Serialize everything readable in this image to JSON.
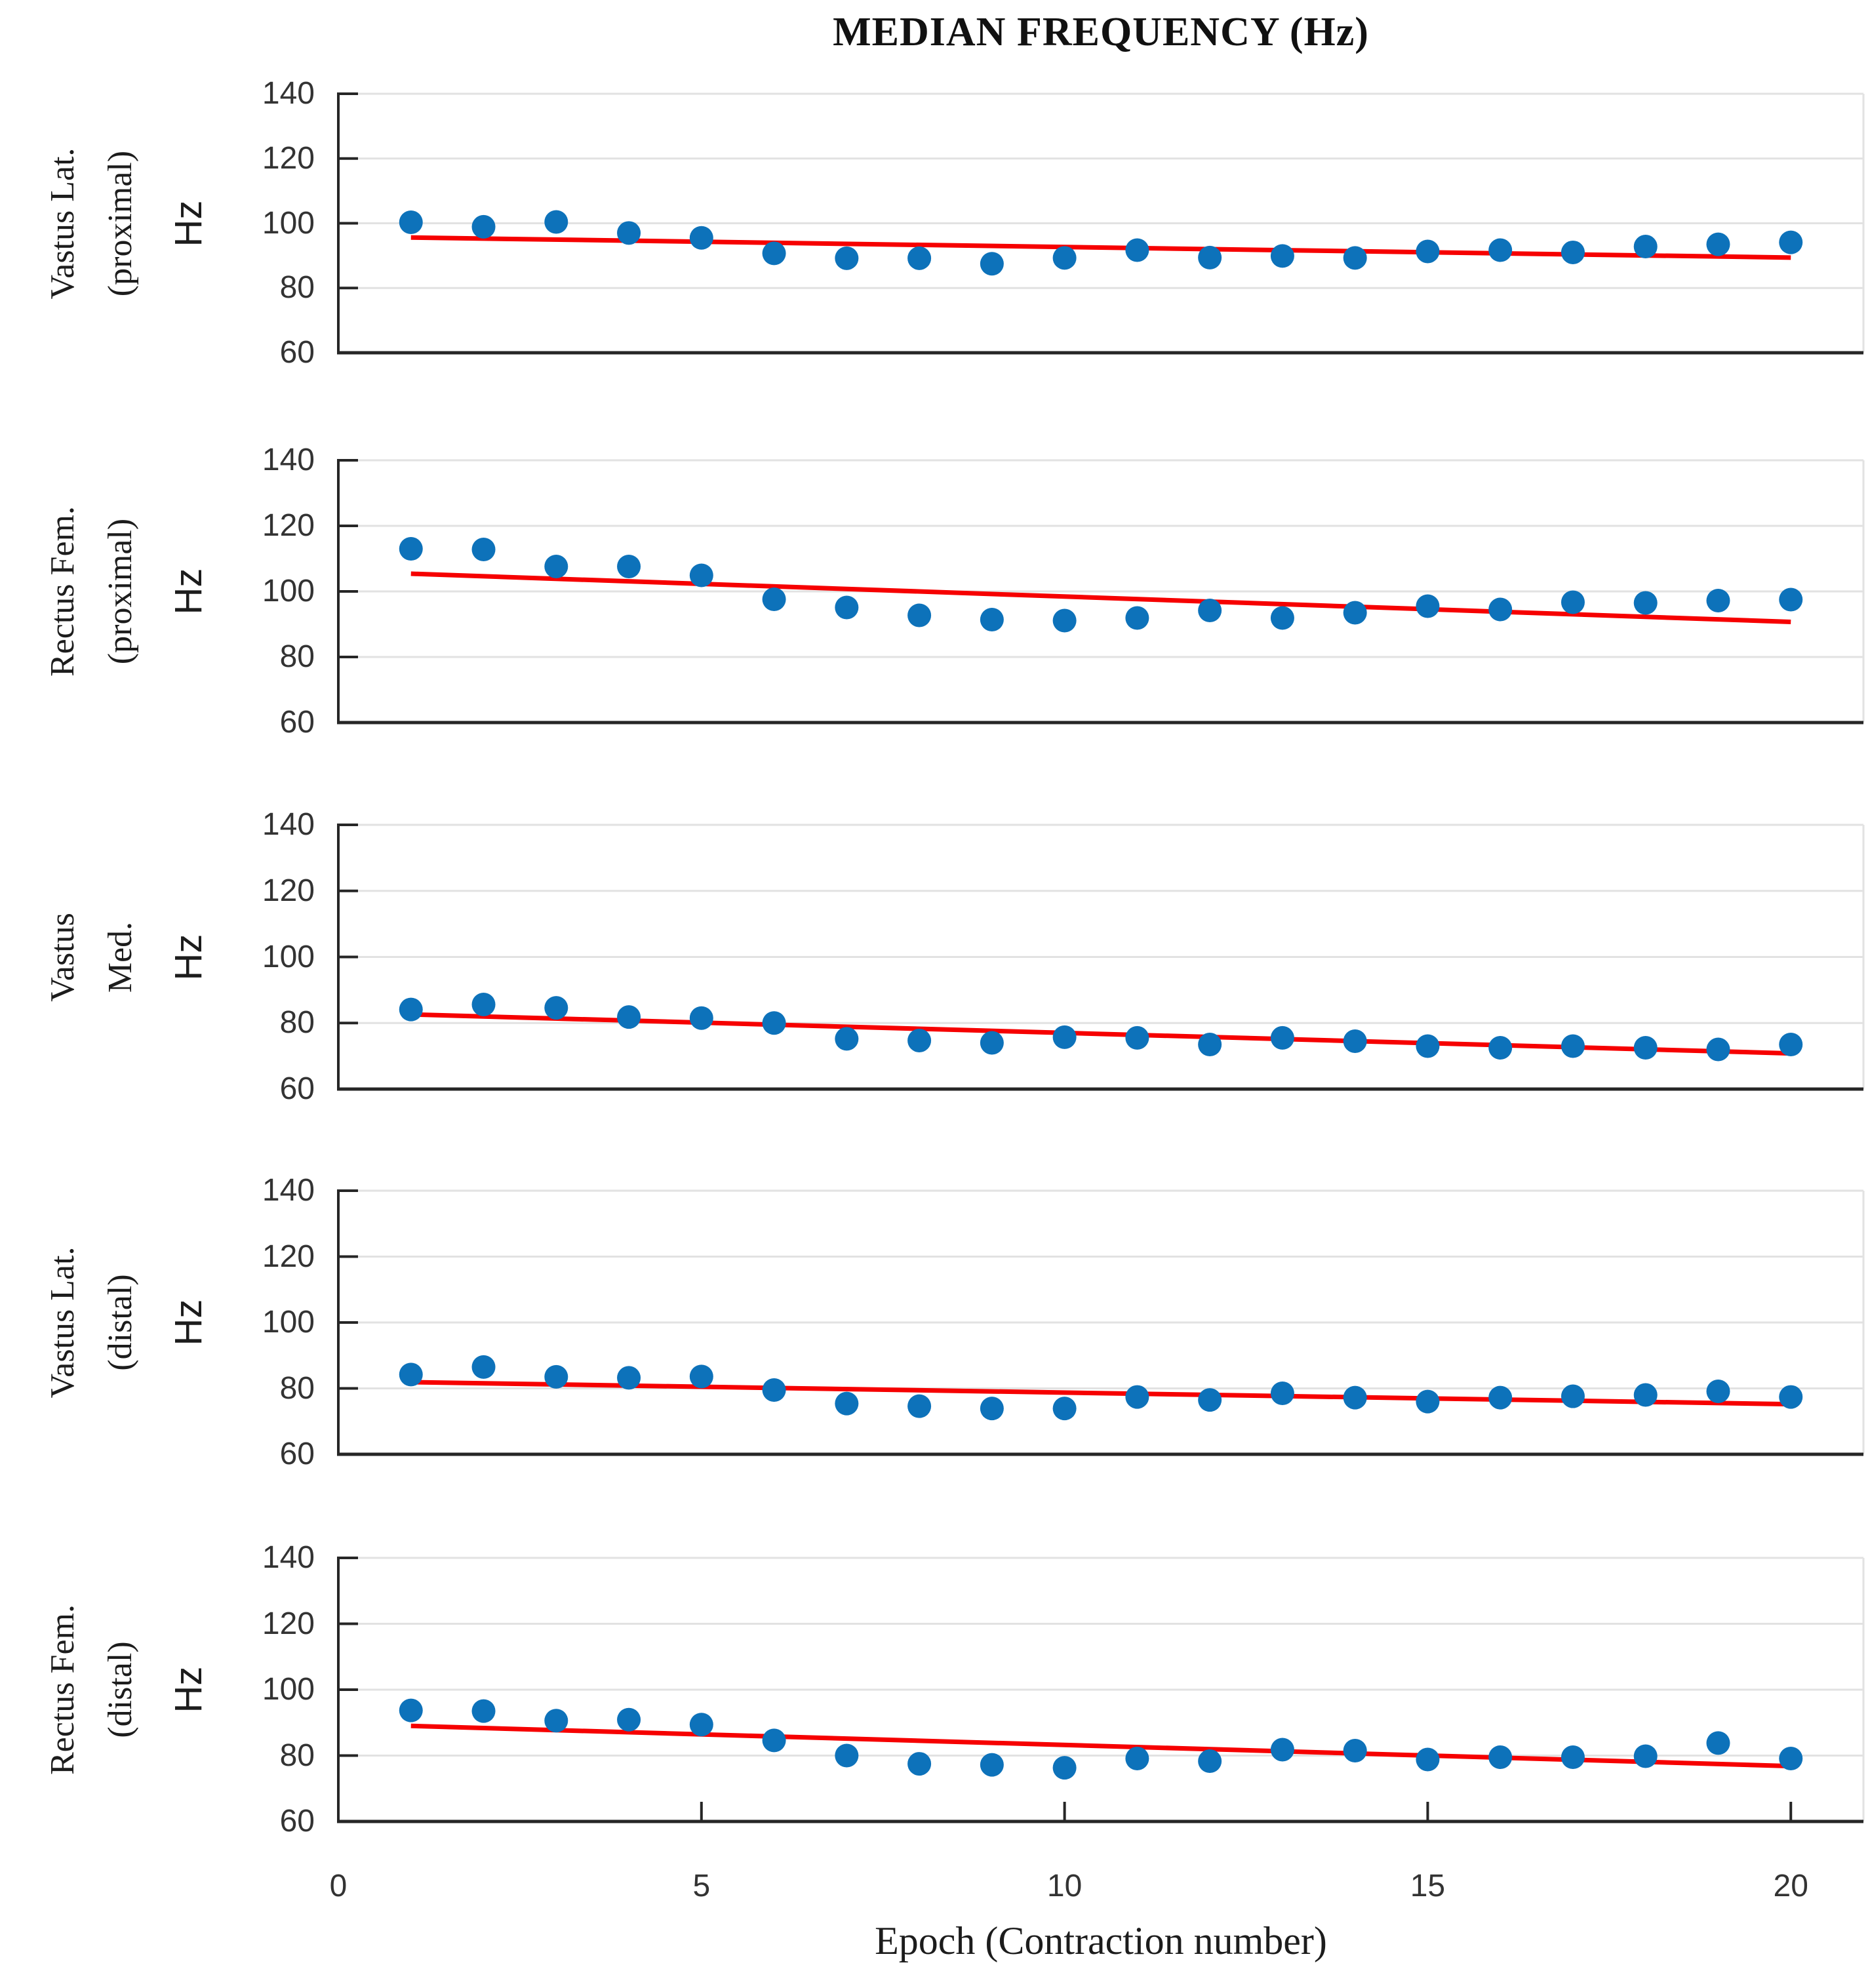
{
  "title": "MEDIAN FREQUENCY (Hz)",
  "x_axis": {
    "label": "Epoch (Contraction number)",
    "ticks": [
      0,
      5,
      10,
      15,
      20
    ],
    "lim": [
      0,
      21
    ]
  },
  "colors": {
    "marker": "#0D72BA",
    "trend": "#F60000",
    "grid": "#E2E2E2",
    "axis": "#262626",
    "tick_text": "#333333"
  },
  "chart_data": [
    {
      "type": "scatter",
      "label_lines": [
        "Vastus Lat.",
        "(proximal)"
      ],
      "unit": "Hz",
      "ylim": [
        60,
        140
      ],
      "yticks": [
        60,
        80,
        100,
        120,
        140
      ],
      "x": [
        1,
        2,
        3,
        4,
        5,
        6,
        7,
        8,
        9,
        10,
        11,
        12,
        13,
        14,
        15,
        16,
        17,
        18,
        19,
        20
      ],
      "values": [
        100.3,
        98.9,
        100.4,
        97.0,
        95.5,
        90.7,
        89.2,
        89.2,
        87.5,
        89.3,
        91.7,
        89.4,
        89.9,
        89.3,
        91.3,
        91.7,
        91.0,
        92.8,
        93.5,
        94.1
      ],
      "trend": {
        "x": [
          1,
          20
        ],
        "y": [
          95.6,
          89.4
        ]
      }
    },
    {
      "type": "scatter",
      "label_lines": [
        "Rectus Fem.",
        "(proximal)"
      ],
      "unit": "Hz",
      "ylim": [
        60,
        140
      ],
      "yticks": [
        60,
        80,
        100,
        120,
        140
      ],
      "x": [
        1,
        2,
        3,
        4,
        5,
        6,
        7,
        8,
        9,
        10,
        11,
        12,
        13,
        14,
        15,
        16,
        17,
        18,
        19,
        20
      ],
      "values": [
        113.0,
        112.8,
        107.6,
        107.6,
        104.9,
        97.6,
        95.1,
        92.7,
        91.4,
        91.1,
        91.9,
        94.2,
        91.9,
        93.5,
        95.5,
        94.5,
        96.7,
        96.5,
        97.2,
        97.5
      ],
      "trend": {
        "x": [
          1,
          20
        ],
        "y": [
          105.4,
          90.7
        ]
      }
    },
    {
      "type": "scatter",
      "label_lines": [
        "Vastus",
        "Med."
      ],
      "unit": "Hz",
      "ylim": [
        60,
        140
      ],
      "yticks": [
        60,
        80,
        100,
        120,
        140
      ],
      "x": [
        1,
        2,
        3,
        4,
        5,
        6,
        7,
        8,
        9,
        10,
        11,
        12,
        13,
        14,
        15,
        16,
        17,
        18,
        19,
        20
      ],
      "values": [
        84.1,
        85.6,
        84.6,
        81.8,
        81.5,
        80.0,
        75.2,
        74.7,
        74.0,
        75.7,
        75.5,
        73.5,
        75.5,
        74.5,
        73.0,
        72.5,
        73.0,
        72.5,
        72.0,
        73.5
      ],
      "trend": {
        "x": [
          1,
          20
        ],
        "y": [
          82.6,
          70.8
        ]
      }
    },
    {
      "type": "scatter",
      "label_lines": [
        "Vastus Lat.",
        "(distal)"
      ],
      "unit": "Hz",
      "ylim": [
        60,
        140
      ],
      "yticks": [
        60,
        80,
        100,
        120,
        140
      ],
      "x": [
        1,
        2,
        3,
        4,
        5,
        6,
        7,
        8,
        9,
        10,
        11,
        12,
        13,
        14,
        15,
        16,
        17,
        18,
        19,
        20
      ],
      "values": [
        84.2,
        86.5,
        83.5,
        83.2,
        83.6,
        79.5,
        75.4,
        74.6,
        73.9,
        73.9,
        77.4,
        76.5,
        78.5,
        77.2,
        76.0,
        77.2,
        77.6,
        78.0,
        79.1,
        77.4
      ],
      "trend": {
        "x": [
          1,
          20
        ],
        "y": [
          81.9,
          75.2
        ]
      }
    },
    {
      "type": "scatter",
      "label_lines": [
        "Rectus Fem.",
        "(distal)"
      ],
      "unit": "Hz",
      "ylim": [
        60,
        140
      ],
      "yticks": [
        60,
        80,
        100,
        120,
        140
      ],
      "x": [
        1,
        2,
        3,
        4,
        5,
        6,
        7,
        8,
        9,
        10,
        11,
        12,
        13,
        14,
        15,
        16,
        17,
        18,
        19,
        20
      ],
      "values": [
        93.7,
        93.5,
        90.6,
        90.9,
        89.4,
        84.6,
        80.0,
        77.5,
        77.2,
        76.3,
        79.1,
        78.3,
        81.8,
        81.5,
        78.8,
        79.5,
        79.5,
        79.8,
        83.8,
        79.1
      ],
      "trend": {
        "x": [
          1,
          20
        ],
        "y": [
          89.0,
          76.8
        ]
      }
    }
  ]
}
